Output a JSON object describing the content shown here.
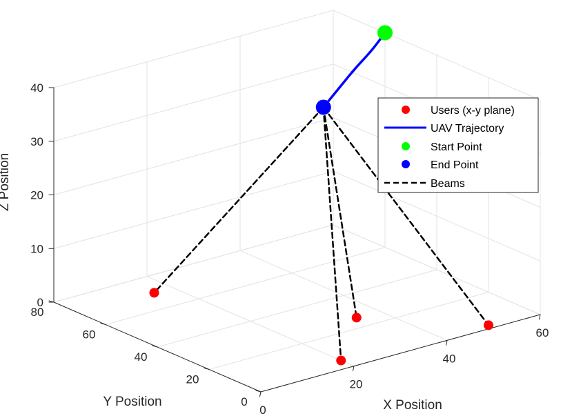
{
  "chart_data": {
    "type": "scatter",
    "projection": "3d",
    "xlabel": "X Position",
    "ylabel": "Y Position",
    "zlabel": "Z Position",
    "xlim": [
      0,
      60
    ],
    "ylim": [
      0,
      80
    ],
    "zlim": [
      0,
      40
    ],
    "xticks": [
      "0",
      "20",
      "40",
      "60"
    ],
    "yticks": [
      "0",
      "20",
      "40",
      "60",
      "80"
    ],
    "zticks": [
      "0",
      "10",
      "20",
      "30",
      "40"
    ],
    "grid": true,
    "legend_position": "right",
    "colors": {
      "users": "#ff0000",
      "trajectory": "#0000ff",
      "start": "#00ff00",
      "end": "#0000ff",
      "beams": "#000000"
    },
    "series": [
      {
        "name": "Users (x-y plane)",
        "type": "scatter",
        "points": [
          {
            "x": 16,
            "y": 70,
            "z": 0
          },
          {
            "x": 35,
            "y": 26,
            "z": 0
          },
          {
            "x": 20,
            "y": 5,
            "z": 0
          },
          {
            "x": 50,
            "y": 2,
            "z": 0
          }
        ]
      },
      {
        "name": "UAV Trajectory",
        "type": "line",
        "points": [
          {
            "x": 60,
            "y": 60,
            "z": 40
          },
          {
            "x": 56,
            "y": 58,
            "z": 38
          },
          {
            "x": 52,
            "y": 57,
            "z": 36
          },
          {
            "x": 48,
            "y": 56,
            "z": 33.5
          },
          {
            "x": 44,
            "y": 55,
            "z": 31
          }
        ]
      },
      {
        "name": "Start Point",
        "type": "scatter",
        "points": [
          {
            "x": 60,
            "y": 60,
            "z": 40
          }
        ]
      },
      {
        "name": "End Point",
        "type": "scatter",
        "points": [
          {
            "x": 44,
            "y": 55,
            "z": 31
          }
        ]
      },
      {
        "name": "Beams",
        "type": "segments",
        "from": {
          "x": 44,
          "y": 55,
          "z": 31
        },
        "to_users": [
          0,
          1,
          2,
          3
        ]
      }
    ]
  }
}
